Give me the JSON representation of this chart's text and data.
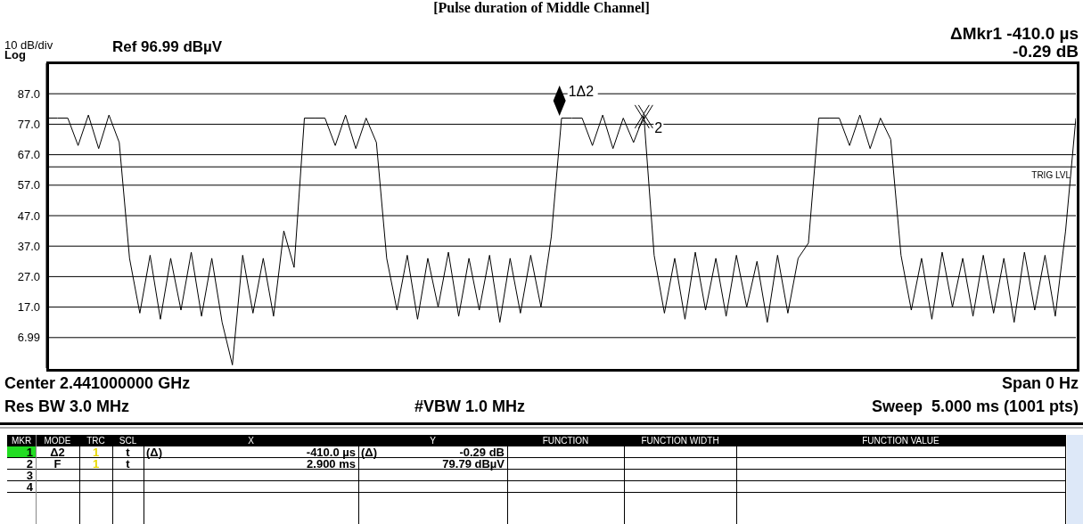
{
  "chart_data": {
    "type": "line",
    "title": "[Pulse duration of Middle Channel]",
    "categories": [
      null,
      null,
      null,
      null,
      null,
      null,
      null,
      null,
      null,
      null,
      null,
      null,
      null,
      null,
      null,
      null,
      null,
      null,
      null,
      null,
      null,
      null,
      null,
      null,
      null,
      null,
      null,
      null,
      null,
      null,
      null,
      null,
      null,
      null,
      null,
      null,
      null,
      null,
      null,
      null,
      null,
      null,
      null,
      null,
      null,
      null,
      null,
      null,
      null,
      null,
      null,
      null,
      null,
      null,
      null,
      null,
      null,
      null,
      null,
      null,
      null,
      null,
      null,
      null,
      null,
      null,
      null,
      null,
      null,
      null,
      null,
      null,
      null,
      null,
      null,
      null,
      null,
      null,
      null,
      null,
      null,
      null,
      null,
      null,
      null,
      null,
      null,
      null,
      null,
      null,
      null,
      null,
      null,
      null,
      null,
      null,
      null,
      null,
      null,
      null,
      null
    ],
    "ylim": [
      -3.01,
      96.99
    ],
    "yticks": [
      {
        "value": 86.99,
        "label": "87.0"
      },
      {
        "value": 76.99,
        "label": "77.0"
      },
      {
        "value": 66.99,
        "label": "67.0"
      },
      {
        "value": 56.99,
        "label": "57.0"
      },
      {
        "value": 46.99,
        "label": "47.0"
      },
      {
        "value": 36.99,
        "label": "37.0"
      },
      {
        "value": 26.99,
        "label": "27.0"
      },
      {
        "value": 16.99,
        "label": "17.0"
      },
      6.99
    ],
    "tick_labels": "y",
    "grid": true,
    "marker": "none",
    "series": [
      {
        "color": "#000000",
        "values": [
          79,
          79,
          79,
          70,
          80,
          69,
          80,
          71,
          33,
          15,
          34,
          13,
          33,
          16,
          35,
          14,
          33,
          12,
          -2,
          34,
          15,
          33,
          14,
          42,
          30,
          79,
          79,
          79,
          70,
          80,
          69,
          79,
          71,
          33,
          16,
          34,
          13,
          33,
          17,
          35,
          14,
          33,
          16,
          34,
          12,
          33,
          15,
          34,
          17,
          40,
          79,
          79,
          79,
          70,
          80,
          69,
          79,
          71,
          79.79,
          34,
          15,
          33,
          13,
          35,
          16,
          33,
          14,
          34,
          17,
          32,
          12,
          34,
          15,
          33,
          38,
          79,
          79,
          79,
          70,
          80,
          69,
          79,
          72,
          34,
          16,
          33,
          13,
          35,
          17,
          33,
          14,
          34,
          15,
          33,
          12,
          35,
          16,
          34,
          14,
          42,
          79
        ]
      }
    ],
    "ref_lines": [
      {
        "axis": "y",
        "value": 63,
        "label": "TRIG LVL"
      }
    ],
    "annotations": [
      "ΔMkr1 -410.0 µs",
      "-0.29 dB",
      "10 dB/div",
      "Log",
      "Ref 96.99 dBµV",
      "Center 2.441000000 GHz",
      "Span 0 Hz",
      "Res BW 3.0 MHz",
      "#VBW 1.0 MHz",
      "Sweep  5.000 ms (1001 pts)",
      "1Δ2",
      "2",
      "MKR",
      "MODE",
      "TRC",
      "SCL",
      "X",
      "Y",
      "FUNCTION",
      "FUNCTION WIDTH",
      "FUNCTION VALUE",
      "1",
      "Δ2",
      "1",
      "t",
      "(Δ)",
      "-410.0 µs",
      "(Δ)",
      "-0.29 dB",
      "2",
      "F",
      "1",
      "t",
      "2.900 ms",
      "79.79 dBµV",
      "3",
      "4"
    ]
  }
}
